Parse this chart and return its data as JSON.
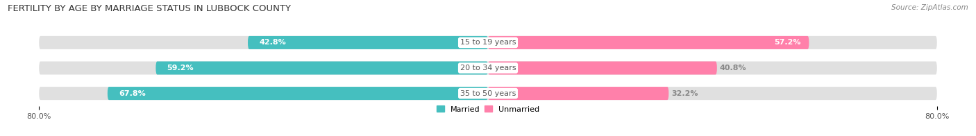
{
  "title": "FERTILITY BY AGE BY MARRIAGE STATUS IN LUBBOCK COUNTY",
  "source": "Source: ZipAtlas.com",
  "categories": [
    "15 to 19 years",
    "20 to 34 years",
    "35 to 50 years"
  ],
  "married_values": [
    42.8,
    59.2,
    67.8
  ],
  "unmarried_values": [
    57.2,
    40.8,
    32.2
  ],
  "married_color": "#45BFBF",
  "unmarried_color": "#FF80AA",
  "bar_bg_color": "#E0E0E0",
  "background_color": "#FFFFFF",
  "axis_max": 80.0,
  "legend_married": "Married",
  "legend_unmarried": "Unmarried",
  "title_fontsize": 9.5,
  "label_fontsize": 8,
  "tick_fontsize": 8,
  "source_fontsize": 7.5,
  "cat_label_color": "#555555",
  "val_label_color_white": "#FFFFFF",
  "val_label_color_dark": "#888888"
}
